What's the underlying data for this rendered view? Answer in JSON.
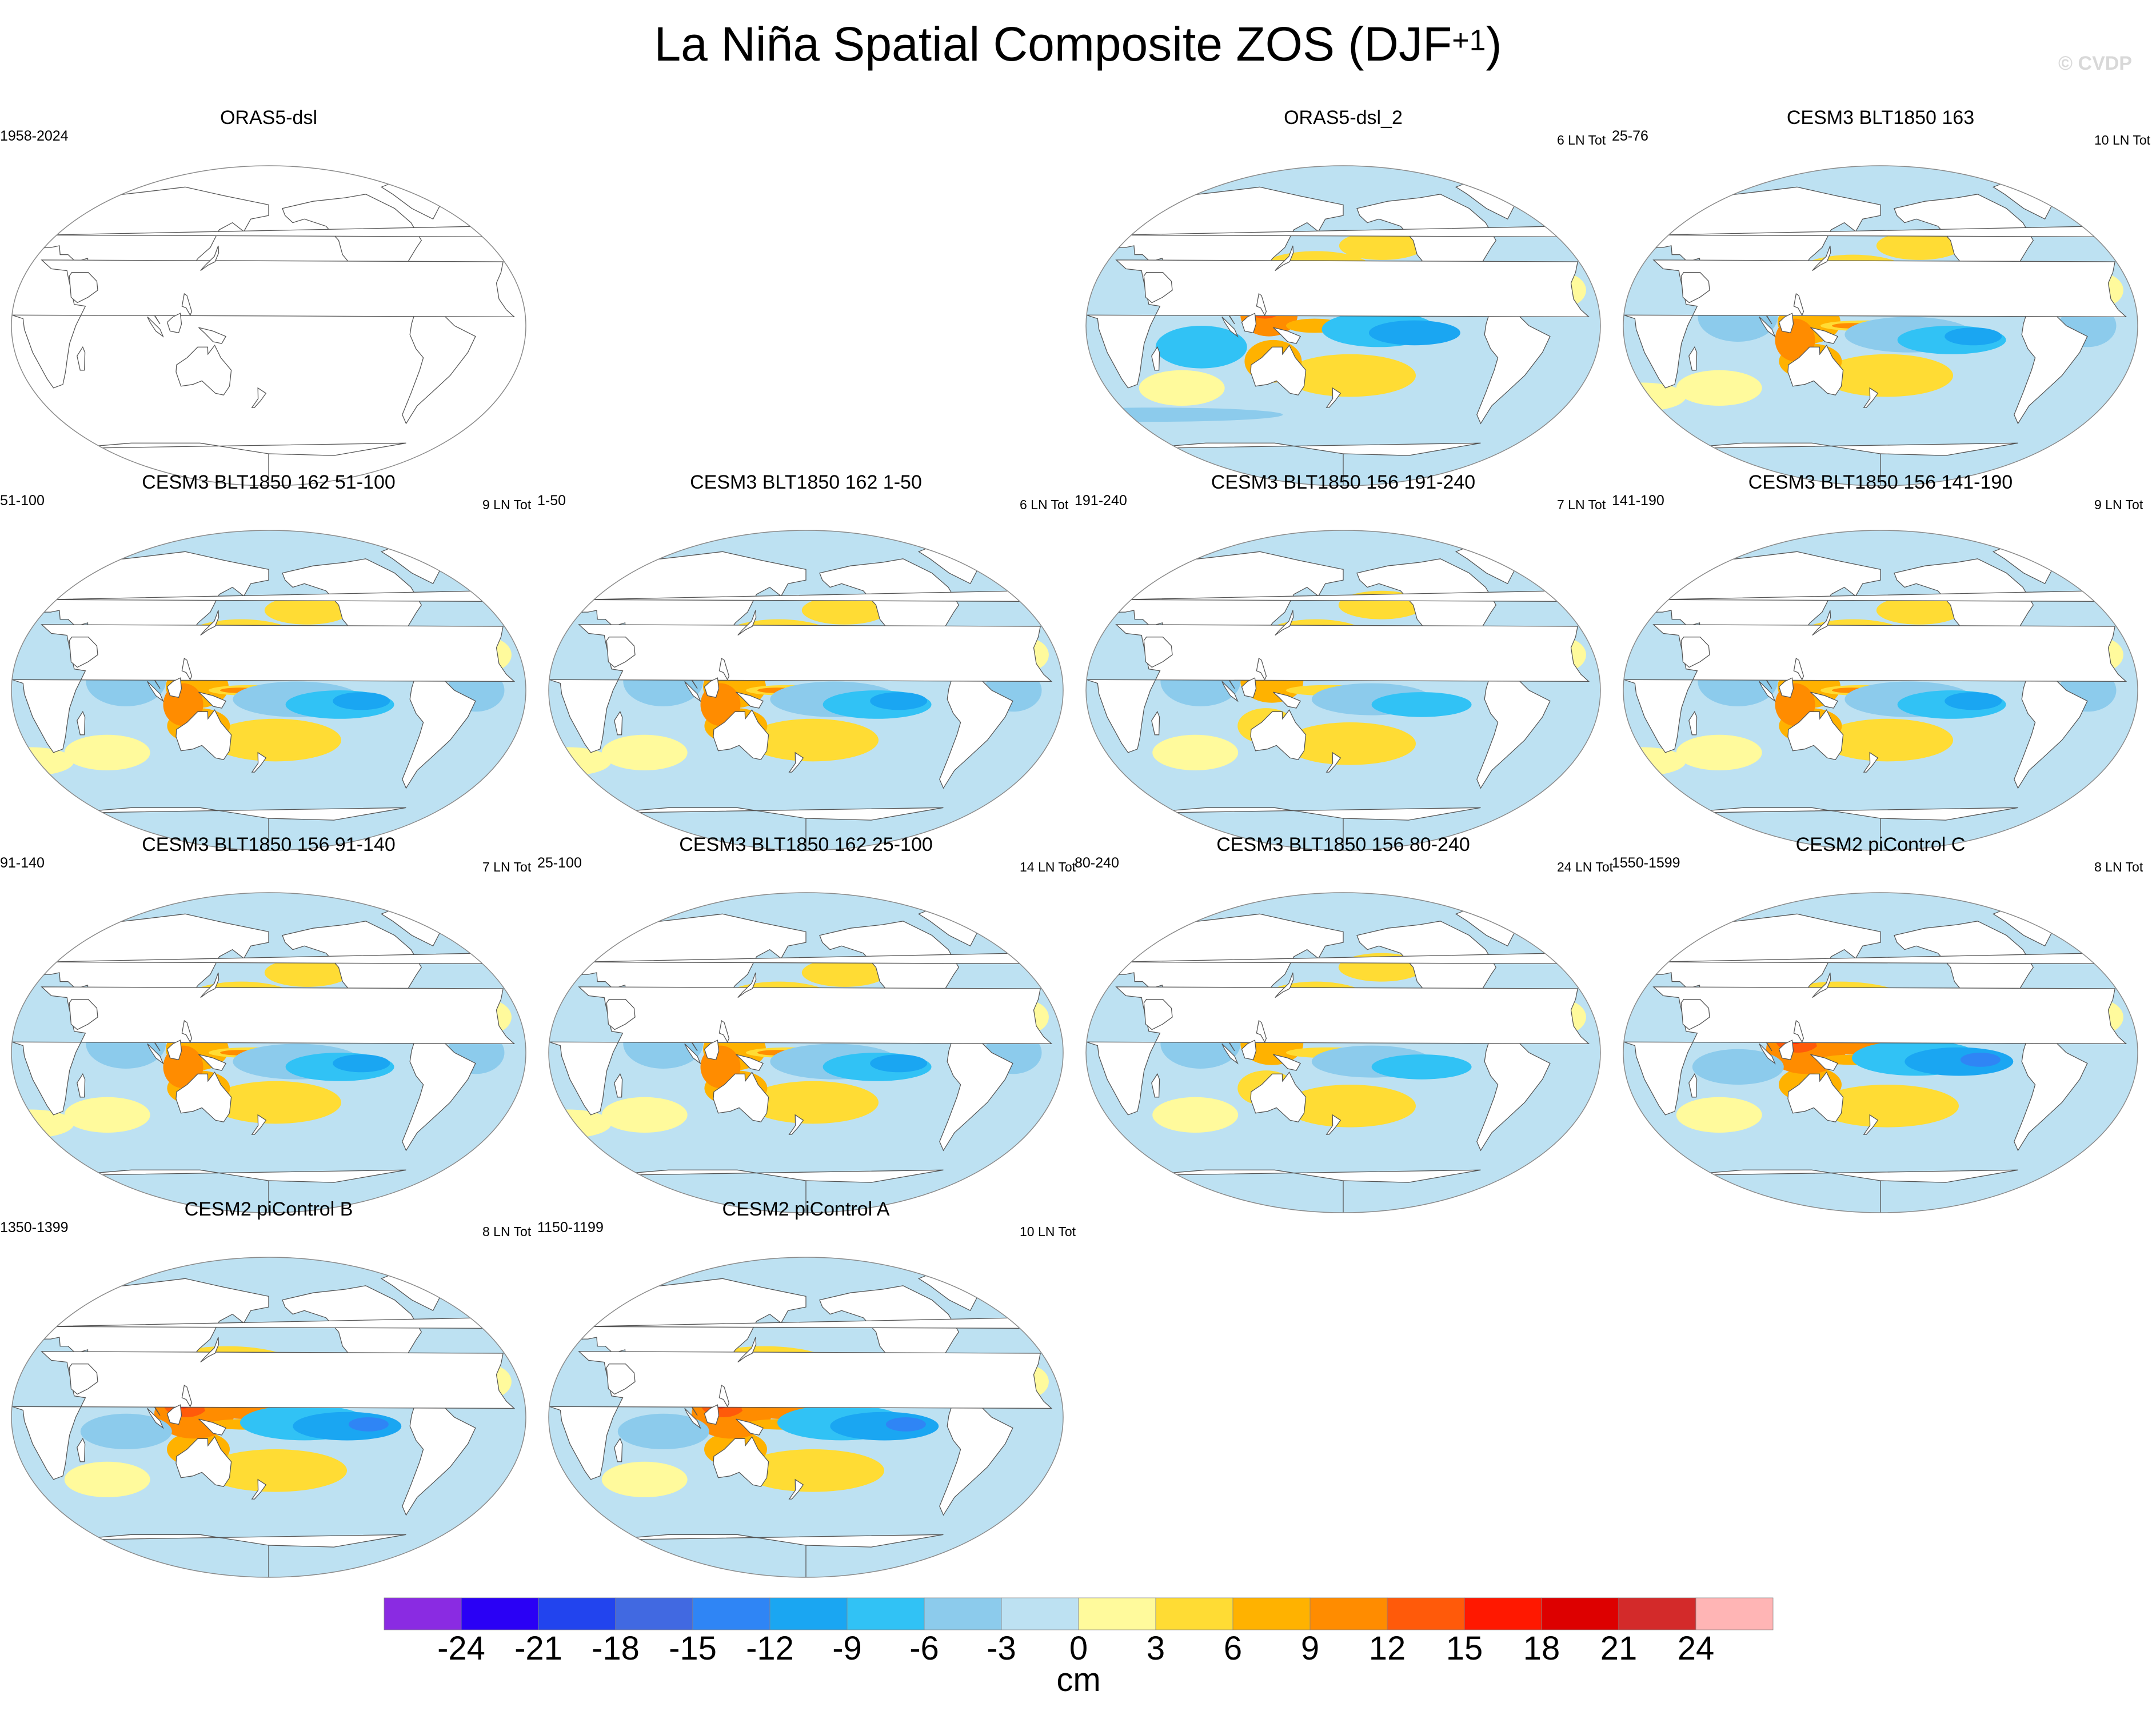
{
  "title": {
    "main": "La Niña Spatial Composite ZOS (DJF",
    "sup": "+1",
    "close": ")"
  },
  "watermark": "© CVDP",
  "chart_data": {
    "type": "heatmap",
    "variable": "ZOS",
    "season": "DJF+1",
    "projection": "Robinson, Pacific-centered",
    "panels": [
      {
        "title": "ORAS5-dsl",
        "years": "1958-2024",
        "count": "",
        "data": false,
        "pattern": "none"
      },
      {
        "title": "ORAS5-dsl_2",
        "years": "",
        "count": "6 LN Tot",
        "data": true,
        "pattern": "obs"
      },
      {
        "title": "CESM3 BLT1850 163",
        "years": "25-76",
        "count": "10 LN Tot",
        "data": true,
        "pattern": "moderate"
      },
      {
        "title": "CESM3 BLT1850 162 51-100",
        "years": "51-100",
        "count": "9 LN Tot",
        "data": true,
        "pattern": "moderate"
      },
      {
        "title": "CESM3 BLT1850 162 1-50",
        "years": "1-50",
        "count": "6 LN Tot",
        "data": true,
        "pattern": "moderate"
      },
      {
        "title": "CESM3 BLT1850 156 191-240",
        "years": "191-240",
        "count": "7 LN Tot",
        "data": true,
        "pattern": "weak"
      },
      {
        "title": "CESM3 BLT1850 156 141-190",
        "years": "141-190",
        "count": "9 LN Tot",
        "data": true,
        "pattern": "moderate"
      },
      {
        "title": "CESM3 BLT1850 156 91-140",
        "years": "91-140",
        "count": "7 LN Tot",
        "data": true,
        "pattern": "moderate"
      },
      {
        "title": "CESM3 BLT1850 162 25-100",
        "years": "25-100",
        "count": "14 LN Tot",
        "data": true,
        "pattern": "moderate"
      },
      {
        "title": "CESM3 BLT1850 156 80-240",
        "years": "80-240",
        "count": "24 LN Tot",
        "data": true,
        "pattern": "weak"
      },
      {
        "title": "CESM2 piControl C",
        "years": "1550-1599",
        "count": "8 LN Tot",
        "data": true,
        "pattern": "strong"
      },
      {
        "title": "CESM2 piControl B",
        "years": "1350-1399",
        "count": "8 LN Tot",
        "data": true,
        "pattern": "strong"
      },
      {
        "title": "CESM2 piControl A",
        "years": "1150-1199",
        "count": "10 LN Tot",
        "data": true,
        "pattern": "strong"
      }
    ],
    "colorbar": {
      "ticks": [
        "-24",
        "-21",
        "-18",
        "-15",
        "-12",
        "-9",
        "-6",
        "-3",
        "0",
        "3",
        "6",
        "9",
        "12",
        "15",
        "18",
        "21",
        "24"
      ],
      "colors": [
        "#8a2be2",
        "#2a00f5",
        "#2244ee",
        "#4169e1",
        "#2f85f5",
        "#1aa6f2",
        "#31c2f5",
        "#8ccbec",
        "#bde1f2",
        "#fffa9c",
        "#ffdc34",
        "#ffb200",
        "#ff8c00",
        "#ff5a0a",
        "#ff1800",
        "#dd0000",
        "#d32a2a",
        "#ffb5b5"
      ],
      "unit": "cm"
    }
  }
}
